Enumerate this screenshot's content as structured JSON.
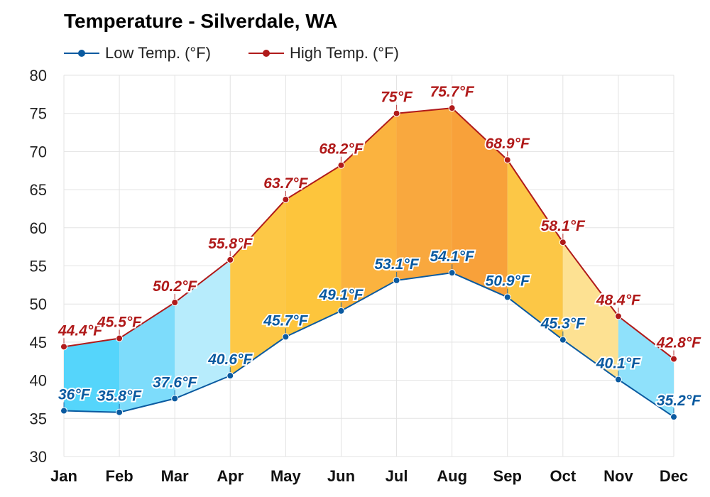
{
  "chart_data": {
    "type": "line",
    "title": "Temperature - Silverdale, WA",
    "categories": [
      "Jan",
      "Feb",
      "Mar",
      "Apr",
      "May",
      "Jun",
      "Jul",
      "Aug",
      "Sep",
      "Oct",
      "Nov",
      "Dec"
    ],
    "series": [
      {
        "name": "Low Temp. (°F)",
        "color": "#0a5aa0",
        "values": [
          36,
          35.8,
          37.6,
          40.6,
          45.7,
          49.1,
          53.1,
          54.1,
          50.9,
          45.3,
          40.1,
          35.2
        ],
        "labels": [
          "36°F",
          "35.8°F",
          "37.6°F",
          "40.6°F",
          "45.7°F",
          "49.1°F",
          "53.1°F",
          "54.1°F",
          "50.9°F",
          "45.3°F",
          "40.1°F",
          "35.2°F"
        ]
      },
      {
        "name": "High Temp. (°F)",
        "color": "#b01a1a",
        "values": [
          44.4,
          45.5,
          50.2,
          55.8,
          63.7,
          68.2,
          75,
          75.7,
          68.9,
          58.1,
          48.4,
          42.8
        ],
        "labels": [
          "44.4°F",
          "45.5°F",
          "50.2°F",
          "55.8°F",
          "63.7°F",
          "68.2°F",
          "75°F",
          "75.7°F",
          "68.9°F",
          "58.1°F",
          "48.4°F",
          "42.8°F"
        ]
      }
    ],
    "ylim": [
      30,
      80
    ],
    "yticks": [
      30,
      35,
      40,
      45,
      50,
      55,
      60,
      65,
      70,
      75,
      80
    ],
    "xlabel": "",
    "ylabel": "",
    "grid": true,
    "legend_position": "top-left",
    "band_colors": [
      "#55d5fb",
      "#7ddcfb",
      "#b7ecfc",
      "#fdc846",
      "#fdc53c",
      "#fbb33f",
      "#f9a83e",
      "#f8a13a",
      "#fcc746",
      "#fde192",
      "#8fe1fb",
      "#47cbf8"
    ]
  }
}
